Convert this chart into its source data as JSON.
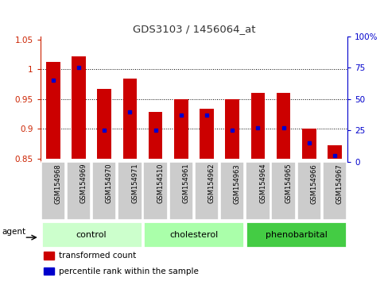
{
  "title": "GDS3103 / 1456064_at",
  "samples": [
    "GSM154968",
    "GSM154969",
    "GSM154970",
    "GSM154971",
    "GSM154510",
    "GSM154961",
    "GSM154962",
    "GSM154963",
    "GSM154964",
    "GSM154965",
    "GSM154966",
    "GSM154967"
  ],
  "bar_tops": [
    1.012,
    1.022,
    0.967,
    0.985,
    0.928,
    0.95,
    0.934,
    0.95,
    0.961,
    0.961,
    0.9,
    0.872
  ],
  "bar_bottom": 0.85,
  "percentile_ranks": [
    65,
    75,
    25,
    40,
    25,
    37,
    37,
    25,
    27,
    27,
    15,
    5
  ],
  "ylim_left": [
    0.845,
    1.055
  ],
  "ylim_right": [
    0,
    100
  ],
  "yticks_left": [
    0.85,
    0.9,
    0.95,
    1.0,
    1.05
  ],
  "yticks_left_labels": [
    "0.85",
    "0.9",
    "0.95",
    "1",
    "1.05"
  ],
  "yticks_right": [
    0,
    25,
    50,
    75,
    100
  ],
  "yticks_right_labels": [
    "0",
    "25",
    "50",
    "75",
    "100%"
  ],
  "hlines": [
    0.9,
    0.95,
    1.0
  ],
  "bar_color": "#cc0000",
  "dot_color": "#0000cc",
  "groups": [
    {
      "label": "control",
      "start": 0,
      "end": 3,
      "color": "#ccffcc"
    },
    {
      "label": "cholesterol",
      "start": 4,
      "end": 7,
      "color": "#aaffaa"
    },
    {
      "label": "phenobarbital",
      "start": 8,
      "end": 11,
      "color": "#44cc44"
    }
  ],
  "agent_label": "agent",
  "legend_items": [
    {
      "label": "transformed count",
      "color": "#cc0000"
    },
    {
      "label": "percentile rank within the sample",
      "color": "#0000cc"
    }
  ],
  "title_color": "#333333",
  "left_tick_color": "#cc2200",
  "right_tick_color": "#0000cc",
  "bar_width": 0.55,
  "fig_width": 4.83,
  "fig_height": 3.54,
  "fig_dpi": 100
}
